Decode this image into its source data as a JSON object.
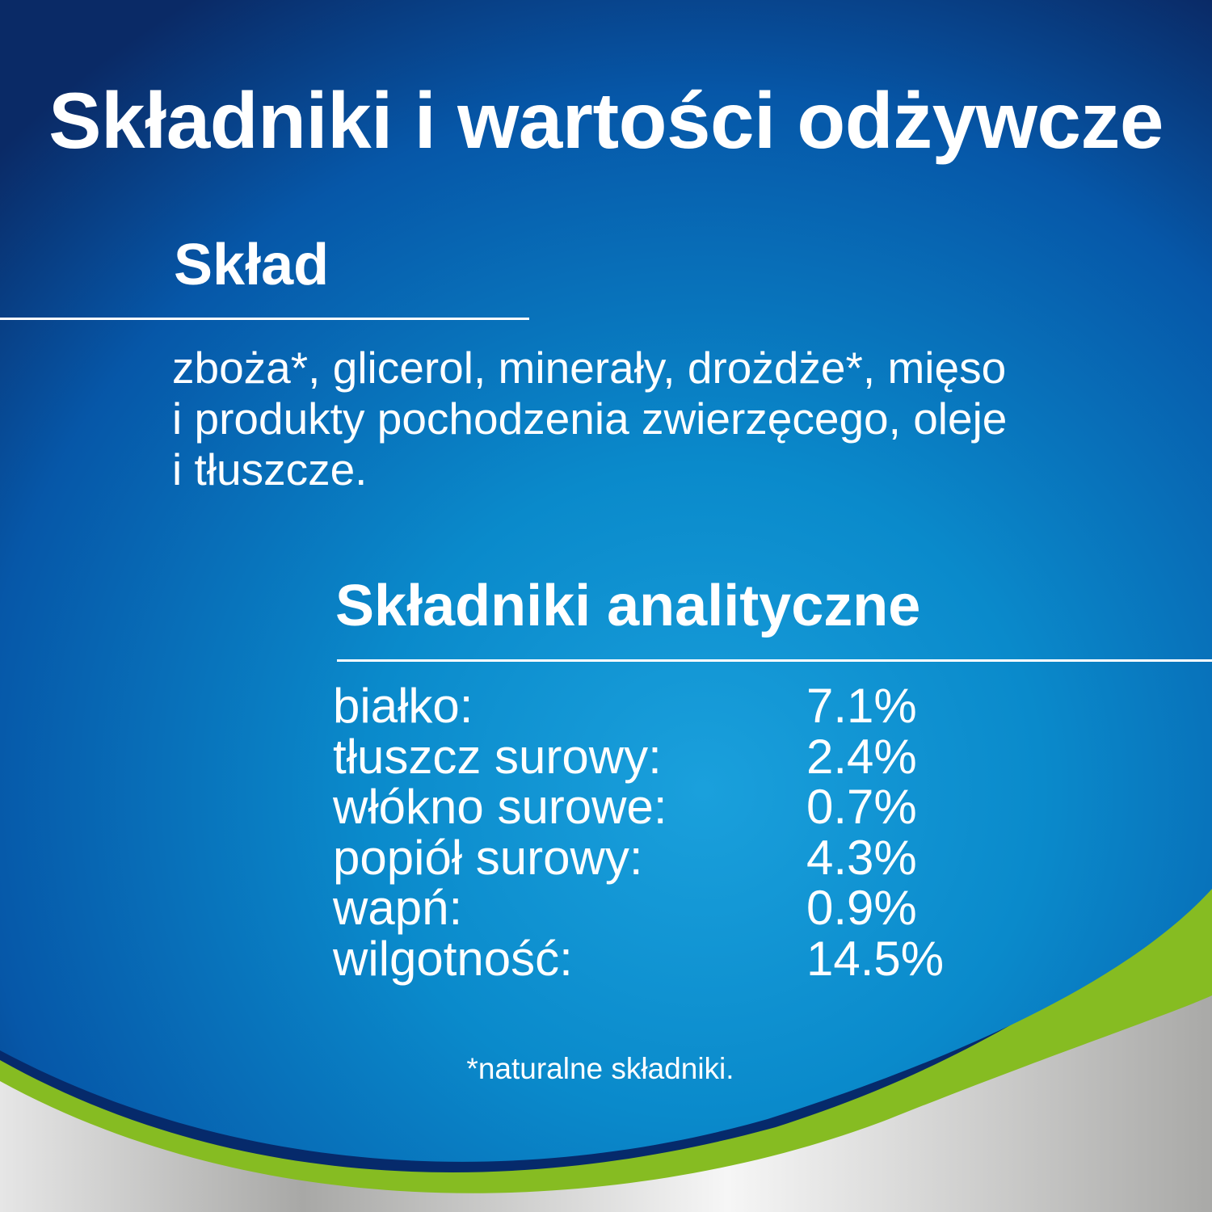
{
  "title": "Składniki i wartości odżywcze",
  "composition": {
    "heading": "Skład",
    "lines": [
      "zboża*, glicerol, minerały, drożdże*, mięso",
      "i produkty pochodzenia zwierzęcego, oleje",
      "i tłuszcze."
    ]
  },
  "analytical": {
    "heading": "Składniki analityczne",
    "rows": [
      {
        "label": "białko:",
        "value": "7.1%"
      },
      {
        "label": "tłuszcz surowy:",
        "value": "2.4%"
      },
      {
        "label": "włókno surowe:",
        "value": "0.7%"
      },
      {
        "label": "popiół surowy:",
        "value": "4.3%"
      },
      {
        "label": "wapń:",
        "value": "0.9%"
      },
      {
        "label": "wilgotność:",
        "value": "14.5%"
      }
    ]
  },
  "footnote": "*naturalne składniki.",
  "colors": {
    "blue_dark": "#0a2f6e",
    "blue_light": "#0a8fd0",
    "navy": "#062a6b",
    "green": "#86bc22",
    "silver": "#c8c8c8"
  }
}
